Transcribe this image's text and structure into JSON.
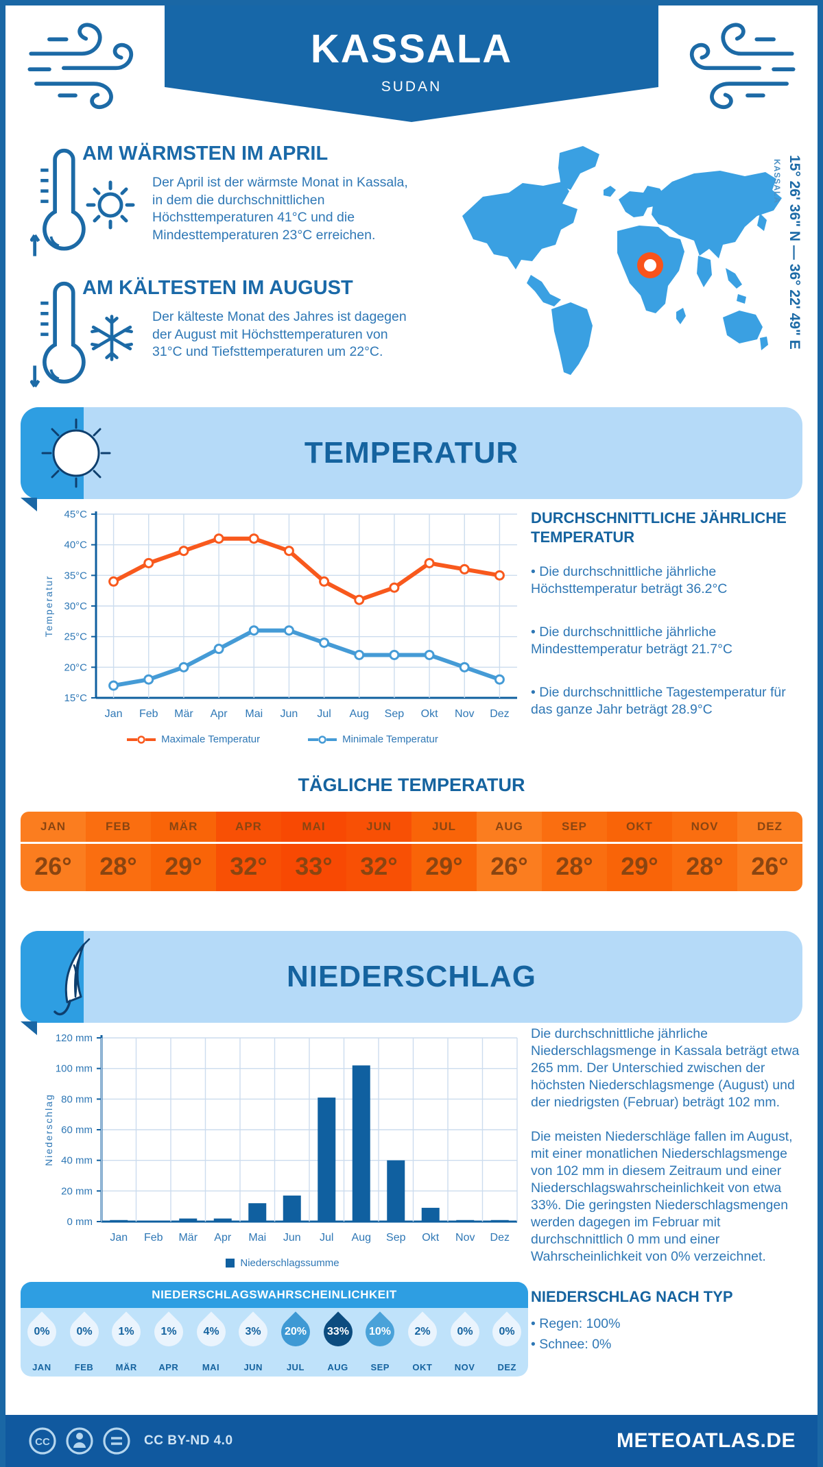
{
  "header": {
    "title": "KASSALA",
    "subtitle": "SUDAN"
  },
  "warmest": {
    "heading": "AM WÄRMSTEN IM APRIL",
    "text": "Der April ist der wärmste Monat in Kassala, in dem die durchschnittlichen Höchsttemperaturen 41°C und die Mindesttemperaturen 23°C erreichen."
  },
  "coldest": {
    "heading": "AM KÄLTESTEN IM AUGUST",
    "text": "Der kälteste Monat des Jahres ist dagegen der August mit Höchsttemperaturen von 31°C und Tiefsttemperaturen um 22°C."
  },
  "map": {
    "coordinates": "15° 26' 36\" N — 36° 22' 49\" E",
    "label": "KASSALA",
    "land_color": "#3aa0e2",
    "marker_color": "#f9531a"
  },
  "temperature_section": {
    "banner": "TEMPERATUR",
    "summary": {
      "heading": "DURCHSCHNITTLICHE JÄHRLICHE TEMPERATUR",
      "bullets": [
        "• Die durchschnittliche jährliche Höchsttemperatur beträgt 36.2°C",
        "• Die durchschnittliche jährliche Mindesttemperatur beträgt 21.7°C",
        "• Die durchschnittliche Tagestemperatur für das ganze Jahr beträgt 28.9°C"
      ]
    },
    "daily": {
      "heading": "TÄGLICHE TEMPERATUR",
      "months": [
        "JAN",
        "FEB",
        "MÄR",
        "APR",
        "MAI",
        "JUN",
        "JUL",
        "AUG",
        "SEP",
        "OKT",
        "NOV",
        "DEZ"
      ],
      "values": [
        "26°",
        "28°",
        "29°",
        "32°",
        "33°",
        "32°",
        "29°",
        "26°",
        "28°",
        "29°",
        "28°",
        "26°"
      ],
      "colors": [
        "#fb7d1f",
        "#fa6e10",
        "#f96408",
        "#f85005",
        "#f84903",
        "#f85005",
        "#f96408",
        "#fb7d1f",
        "#fa6e10",
        "#f96408",
        "#fa6e10",
        "#fb7d1f"
      ]
    }
  },
  "precipitation_section": {
    "banner": "NIEDERSCHLAG",
    "paragraphs": [
      "Die durchschnittliche jährliche Niederschlagsmenge in Kassala beträgt etwa 265 mm. Der Unterschied zwischen der höchsten Niederschlagsmenge (August) und der niedrigsten (Februar) beträgt 102 mm.",
      "Die meisten Niederschläge fallen im August, mit einer monatlichen Niederschlagsmenge von 102 mm in diesem Zeitraum und einer Niederschlagswahrscheinlichkeit von etwa 33%. Die geringsten Niederschlagsmengen werden dagegen im Februar mit durchschnittlich 0 mm und einer Wahrscheinlichkeit von 0% verzeichnet."
    ],
    "probability": {
      "heading": "NIEDERSCHLAGSWAHRSCHEINLICHKEIT",
      "months": [
        "JAN",
        "FEB",
        "MÄR",
        "APR",
        "MAI",
        "JUN",
        "JUL",
        "AUG",
        "SEP",
        "OKT",
        "NOV",
        "DEZ"
      ],
      "values": [
        "0%",
        "0%",
        "1%",
        "1%",
        "4%",
        "3%",
        "20%",
        "33%",
        "10%",
        "2%",
        "0%",
        "0%"
      ],
      "drop_colors": [
        "#eaf4fd",
        "#eaf4fd",
        "#eaf4fd",
        "#eaf4fd",
        "#eaf4fd",
        "#eaf4fd",
        "#3e99d4",
        "#0c4c7f",
        "#4aa2d9",
        "#eaf4fd",
        "#eaf4fd",
        "#eaf4fd"
      ],
      "text_colors": [
        "#15639f",
        "#15639f",
        "#15639f",
        "#15639f",
        "#15639f",
        "#15639f",
        "#ffffff",
        "#ffffff",
        "#ffffff",
        "#15639f",
        "#15639f",
        "#15639f"
      ]
    },
    "type": {
      "heading": "NIEDERSCHLAG NACH TYP",
      "bullets": [
        "• Regen: 100%",
        "• Schnee: 0%"
      ]
    }
  },
  "footer": {
    "license": "CC BY-ND 4.0",
    "site": "METEOATLAS.DE"
  },
  "chart_data": [
    {
      "type": "line",
      "categories": [
        "Jan",
        "Feb",
        "Mär",
        "Apr",
        "Mai",
        "Jun",
        "Jul",
        "Aug",
        "Sep",
        "Okt",
        "Nov",
        "Dez"
      ],
      "series": [
        {
          "name": "Maximale Temperatur",
          "color": "#f8591d",
          "values": [
            34,
            37,
            39,
            41,
            41,
            39,
            34,
            31,
            33,
            37,
            36,
            35
          ]
        },
        {
          "name": "Minimale Temperatur",
          "color": "#459bd6",
          "values": [
            17,
            18,
            20,
            23,
            26,
            26,
            24,
            22,
            22,
            22,
            20,
            18
          ]
        }
      ],
      "ylabel": "Temperatur",
      "ylim": [
        15,
        45
      ],
      "ystep": 5,
      "ysuffix": "°C",
      "grid": true,
      "legend_position": "bottom"
    },
    {
      "type": "bar",
      "categories": [
        "Jan",
        "Feb",
        "Mär",
        "Apr",
        "Mai",
        "Jun",
        "Jul",
        "Aug",
        "Sep",
        "Okt",
        "Nov",
        "Dez"
      ],
      "values": [
        1,
        0,
        2,
        2,
        12,
        17,
        81,
        102,
        40,
        9,
        1,
        1
      ],
      "bar_color": "#1060a0",
      "legend": "Niederschlagssumme",
      "ylabel": "Niederschlag",
      "ylim": [
        0,
        120
      ],
      "ystep": 20,
      "ysuffix": " mm",
      "grid": true,
      "legend_position": "bottom"
    }
  ]
}
